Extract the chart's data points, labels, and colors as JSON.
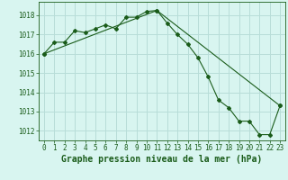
{
  "title": "Graphe pression niveau de la mer (hPa)",
  "background_color": "#d8f5f0",
  "grid_color": "#b8ddd8",
  "line_color": "#1a5c1a",
  "marker_color": "#1a5c1a",
  "xlim": [
    -0.5,
    23.5
  ],
  "ylim": [
    1011.5,
    1018.7
  ],
  "yticks": [
    1012,
    1013,
    1014,
    1015,
    1016,
    1017,
    1018
  ],
  "xticks": [
    0,
    1,
    2,
    3,
    4,
    5,
    6,
    7,
    8,
    9,
    10,
    11,
    12,
    13,
    14,
    15,
    16,
    17,
    18,
    19,
    20,
    21,
    22,
    23
  ],
  "series1_x": [
    0,
    1,
    2,
    3,
    4,
    5,
    6,
    7,
    8,
    9,
    10,
    11,
    12,
    13,
    14,
    15,
    16,
    17,
    18,
    19,
    20,
    21,
    22,
    23
  ],
  "series1_y": [
    1016.0,
    1016.6,
    1016.6,
    1017.2,
    1017.1,
    1017.3,
    1017.5,
    1017.3,
    1017.9,
    1017.9,
    1018.2,
    1018.25,
    1017.6,
    1017.0,
    1016.5,
    1015.8,
    1014.8,
    1013.6,
    1013.2,
    1012.5,
    1012.5,
    1011.8,
    1011.8,
    1013.3
  ],
  "series2_x": [
    0,
    11,
    23
  ],
  "series2_y": [
    1016.0,
    1018.25,
    1013.3
  ],
  "tick_fontsize": 5.5,
  "label_fontsize": 7.0
}
